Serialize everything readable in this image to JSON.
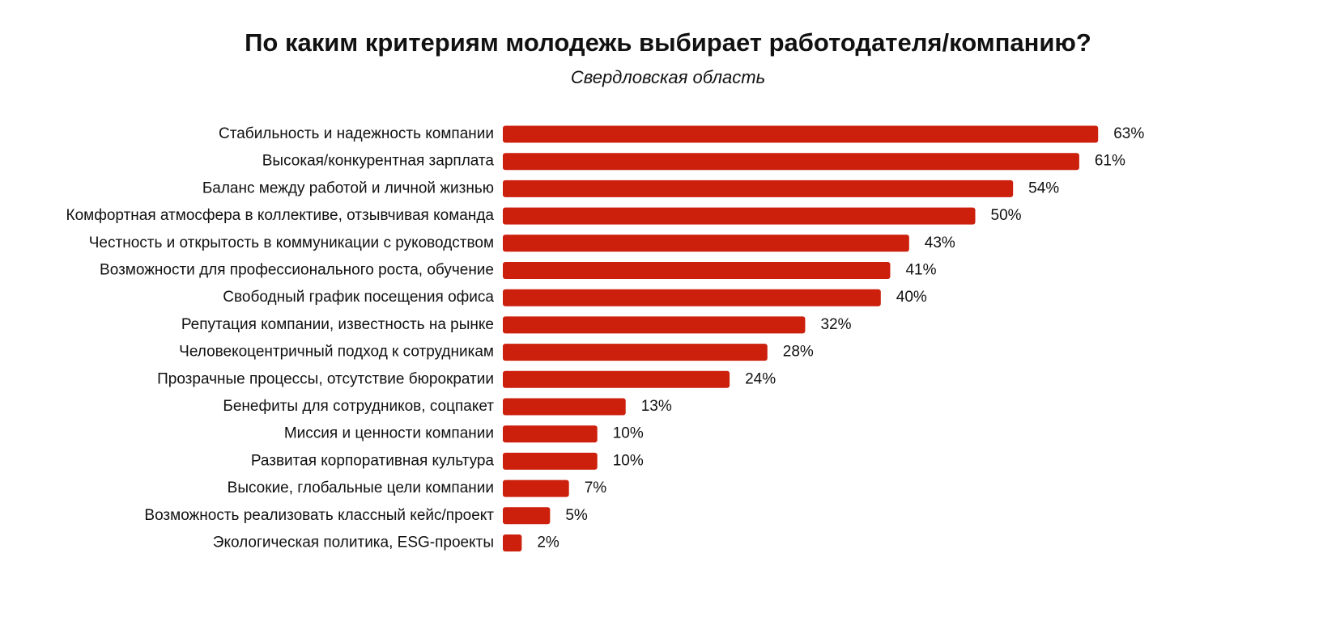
{
  "chart_data": {
    "type": "bar",
    "orientation": "horizontal",
    "title": "По каким критериям молодежь выбирает работодателя/компанию?",
    "subtitle": "Свердловская область",
    "categories": [
      "Стабильность и надежность компании",
      "Высокая/конкурентная зарплата",
      "Баланс между работой и личной жизнью",
      "Комфортная атмосфера в коллективе, отзывчивая команда",
      "Честность и открытость в коммуникации с руководством",
      "Возможности для профессионального роста, обучение",
      "Свободный график посещения офиса",
      "Репутация компании, известность на рынке",
      "Человекоцентричный подход к сотрудникам",
      "Прозрачные процессы, отсутствие бюрократии",
      "Бенефиты для сотрудников, соцпакет",
      "Миссия и ценности компании",
      "Развитая корпоративная культура",
      "Высокие, глобальные цели компании",
      "Возможность реализовать классный кейс/проект",
      "Экологическая политика, ESG-проекты"
    ],
    "values": [
      63,
      61,
      54,
      50,
      43,
      41,
      40,
      32,
      28,
      24,
      13,
      10,
      10,
      7,
      5,
      2
    ],
    "value_labels": [
      "63%",
      "61%",
      "54%",
      "50%",
      "43%",
      "41%",
      "40%",
      "32%",
      "28%",
      "24%",
      "13%",
      "10%",
      "10%",
      "7%",
      "5%",
      "2%"
    ],
    "color": "#cc1f0c"
  }
}
